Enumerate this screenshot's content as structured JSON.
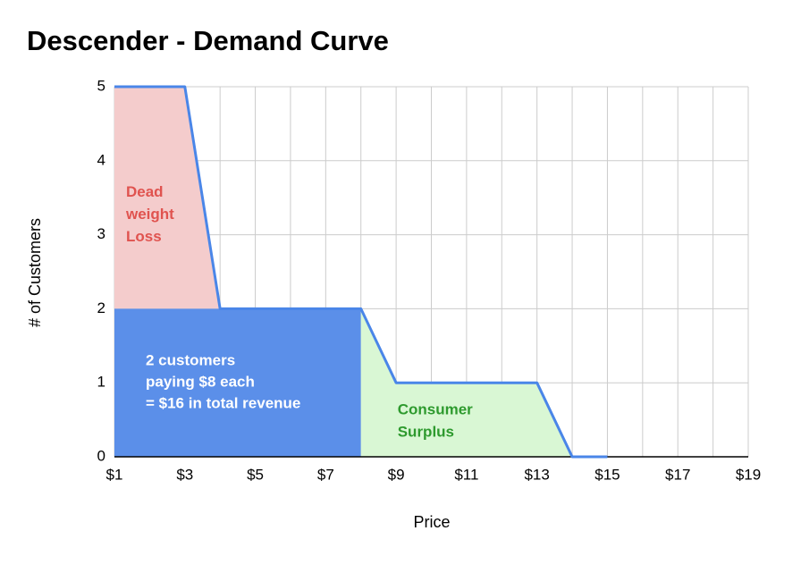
{
  "chart_data": {
    "type": "line",
    "title": "Descender - Demand Curve",
    "x_label": "Price",
    "y_label": "# of Customers",
    "x": [
      1,
      2,
      3,
      4,
      5,
      6,
      7,
      8,
      9,
      10,
      11,
      12,
      13,
      14,
      15
    ],
    "series": [
      {
        "name": "Customers",
        "color": "#4a86e8",
        "values": [
          5,
          5,
          5,
          2,
          2,
          2,
          2,
          2,
          1,
          1,
          1,
          1,
          1,
          0,
          0
        ]
      }
    ],
    "xlim": [
      1,
      19
    ],
    "xticks": [
      {
        "value": 1,
        "label": "$1"
      },
      {
        "value": 3,
        "label": "$3"
      },
      {
        "value": 5,
        "label": "$5"
      },
      {
        "value": 7,
        "label": "$7"
      },
      {
        "value": 9,
        "label": "$9"
      },
      {
        "value": 11,
        "label": "$11"
      },
      {
        "value": 13,
        "label": "$13"
      },
      {
        "value": 15,
        "label": "$15"
      },
      {
        "value": 17,
        "label": "$17"
      },
      {
        "value": 19,
        "label": "$19"
      }
    ],
    "x_minor_ticks": [
      2,
      4,
      6,
      8,
      10,
      12,
      14,
      16,
      18
    ],
    "ylim": [
      0,
      5
    ],
    "yticks": [
      0,
      1,
      2,
      3,
      4,
      5
    ],
    "grid": true,
    "areas": [
      {
        "label": [
          "Dead",
          "weight",
          "Loss"
        ],
        "color": "#f4cccc",
        "text_color": "#e0534f",
        "x": [
          1,
          3,
          4,
          1
        ],
        "y": [
          5,
          5,
          2,
          2
        ]
      },
      {
        "label": [
          "2 customers",
          "paying $8 each",
          "= $16 in total revenue"
        ],
        "color": "#5b8fe9",
        "text_color": "#ffffff",
        "x": [
          1,
          8,
          8,
          1
        ],
        "y": [
          2,
          2,
          0,
          0
        ]
      },
      {
        "label": [
          "Consumer",
          "Surplus"
        ],
        "color": "#d9f7d4",
        "text_color": "#2e9a2e",
        "x": [
          8,
          9,
          13,
          14,
          8
        ],
        "y": [
          2,
          1,
          1,
          0,
          0
        ]
      }
    ]
  }
}
